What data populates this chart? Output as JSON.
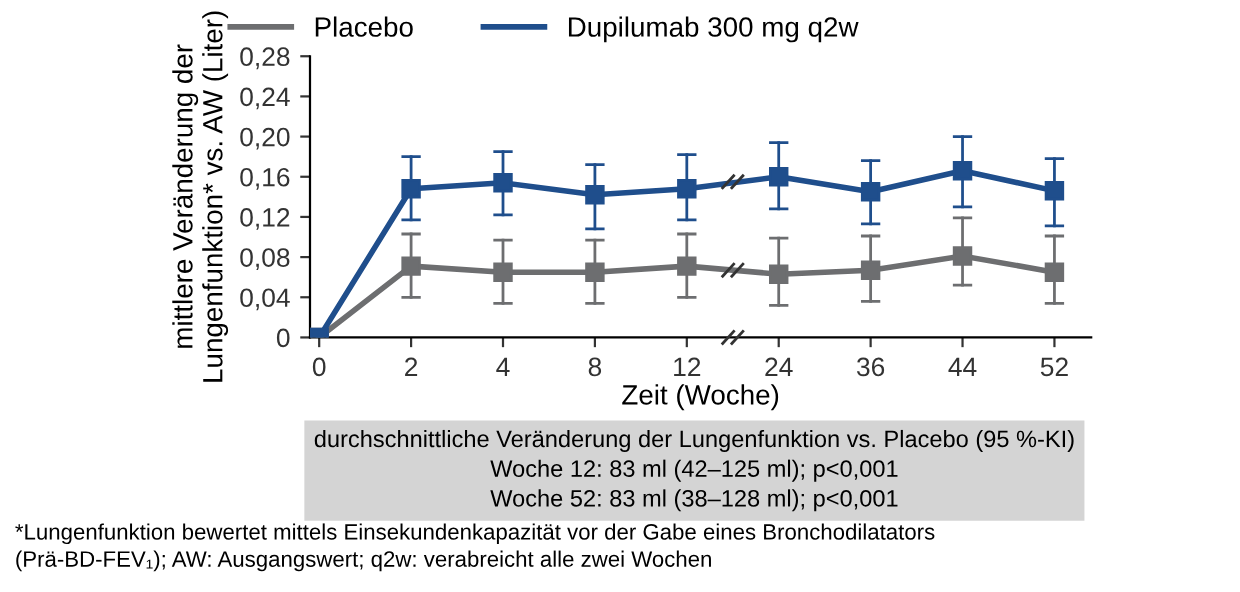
{
  "chart_data": {
    "type": "line",
    "xlabel": "Zeit (Woche)",
    "ylabel": "mittlere Veränderung der\nLungenfunktion* vs. AW (Liter)",
    "categories": [
      "0",
      "2",
      "4",
      "8",
      "12",
      "24",
      "36",
      "44",
      "52"
    ],
    "series": [
      {
        "name": "Placebo",
        "color": "#6d6e70",
        "values": [
          0,
          0.071,
          0.065,
          0.065,
          0.071,
          0.063,
          0.067,
          0.081,
          0.065
        ],
        "errors": [
          null,
          [
            0.04,
            0.103
          ],
          [
            0.034,
            0.097
          ],
          [
            0.034,
            0.097
          ],
          [
            0.04,
            0.103
          ],
          [
            0.032,
            0.099
          ],
          [
            0.036,
            0.101
          ],
          [
            0.052,
            0.119
          ],
          [
            0.034,
            0.101
          ]
        ]
      },
      {
        "name": "Dupilumab 300 mg q2w",
        "color": "#1f4e8c",
        "values": [
          0,
          0.148,
          0.154,
          0.142,
          0.148,
          0.16,
          0.145,
          0.166,
          0.146
        ],
        "errors": [
          null,
          [
            0.117,
            0.18
          ],
          [
            0.122,
            0.185
          ],
          [
            0.108,
            0.172
          ],
          [
            0.117,
            0.182
          ],
          [
            0.128,
            0.194
          ],
          [
            0.113,
            0.176
          ],
          [
            0.13,
            0.2
          ],
          [
            0.111,
            0.178
          ]
        ]
      }
    ],
    "ylim": [
      0,
      0.28
    ],
    "yticks": [
      {
        "value": 0,
        "label": "0"
      },
      {
        "value": 0.04,
        "label": "0,04"
      },
      {
        "value": 0.08,
        "label": "0,08"
      },
      {
        "value": 0.12,
        "label": "0,12"
      },
      {
        "value": 0.16,
        "label": "0,16"
      },
      {
        "value": 0.2,
        "label": "0,20"
      },
      {
        "value": 0.24,
        "label": "0,24"
      },
      {
        "value": 0.28,
        "label": "0,28"
      }
    ],
    "marker": "square",
    "line_style": "solid",
    "grid": false,
    "legend": "top",
    "annotations": [
      "durchschnittliche Veränderung der Lungenfunktion vs. Placebo (95 %-KI)\nWoche 12: 83 ml (42–125 ml); p<0,001\nWoche 52: 83 ml (38–128 ml); p<0,001",
      "*Lungenfunktion bewertet mittels Einsekundenkapazität vor der Gabe eines Bronchodilatators\n(Prä-BD-FEV₁); AW: Ausgangswert; q2w: verabreicht alle zwei Wochen"
    ]
  }
}
